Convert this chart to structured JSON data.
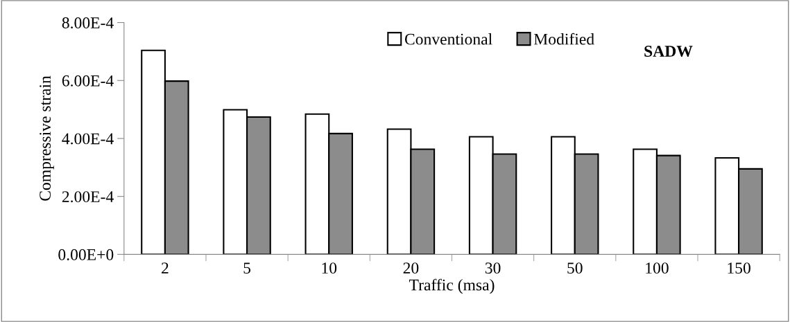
{
  "chart_data": {
    "type": "bar",
    "title": "SADW",
    "xlabel": "Traffic (msa)",
    "ylabel": "Compressive strain",
    "categories": [
      "2",
      "5",
      "10",
      "20",
      "30",
      "50",
      "100",
      "150"
    ],
    "series": [
      {
        "name": "Conventional",
        "color": "#ffffff",
        "values": [
          0.000704,
          0.000499,
          0.000484,
          0.000432,
          0.000406,
          0.000406,
          0.000363,
          0.000333
        ]
      },
      {
        "name": "Modified",
        "color": "#8c8c8c",
        "values": [
          0.000598,
          0.000474,
          0.000417,
          0.000363,
          0.000346,
          0.000346,
          0.000341,
          0.000295
        ]
      }
    ],
    "ylim": [
      0,
      0.0008
    ],
    "yticks": [
      {
        "value": 0,
        "label": "0.00E+0"
      },
      {
        "value": 0.0002,
        "label": "2.00E-4"
      },
      {
        "value": 0.0004,
        "label": "4.00E-4"
      },
      {
        "value": 0.0006,
        "label": "6.00E-4"
      },
      {
        "value": 0.0008,
        "label": "8.00E-4"
      }
    ],
    "legend": "top",
    "grid": false
  }
}
